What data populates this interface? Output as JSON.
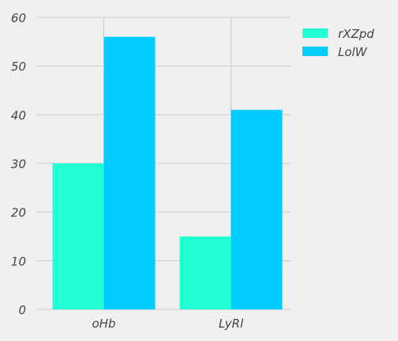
{
  "chart_data": {
    "type": "bar",
    "categories": [
      "oHb",
      "LyRl"
    ],
    "series": [
      {
        "name": "rXZpd",
        "values": [
          30,
          15
        ],
        "color": "#22ffd3"
      },
      {
        "name": "LolW",
        "values": [
          56,
          41
        ],
        "color": "#00ccff"
      }
    ],
    "ylim": [
      0,
      60
    ],
    "yticks": [
      0,
      10,
      20,
      30,
      40,
      50,
      60
    ],
    "grid": true,
    "legend_position": "top-right",
    "background": "#f0f0f0",
    "grid_color": "#cbcbcb"
  }
}
